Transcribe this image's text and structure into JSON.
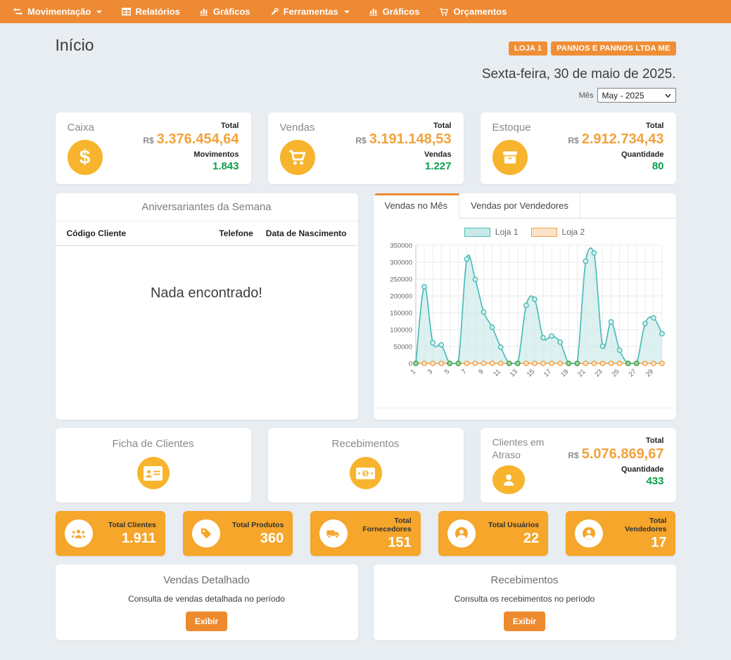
{
  "nav": {
    "items": [
      {
        "label": "Movimentação",
        "icon": "exchange-icon",
        "has_caret": true
      },
      {
        "label": "Relatórios",
        "icon": "table-icon",
        "has_caret": false
      },
      {
        "label": "Gráficos",
        "icon": "bar-chart-icon",
        "has_caret": false
      },
      {
        "label": "Ferramentas",
        "icon": "wrench-icon",
        "has_caret": true
      },
      {
        "label": "Gráficos",
        "icon": "bar-chart-icon",
        "has_caret": false
      },
      {
        "label": "Orçamentos",
        "icon": "cart-icon",
        "has_caret": false
      }
    ]
  },
  "header": {
    "title": "Início",
    "badges": [
      "LOJA 1",
      "PANNOS E PANNOS LTDA ME"
    ],
    "date": "Sexta-feira, 30 de maio de 2025.",
    "month_label": "Mês",
    "month_value": "May - 2025"
  },
  "summary_cards": [
    {
      "title": "Caixa",
      "icon": "dollar-icon",
      "total_label": "Total",
      "currency": "R$",
      "total_value": "3.376.454,64",
      "count_label": "Movimentos",
      "count_value": "1.843"
    },
    {
      "title": "Vendas",
      "icon": "cart-icon",
      "total_label": "Total",
      "currency": "R$",
      "total_value": "3.191.148,53",
      "count_label": "Vendas",
      "count_value": "1.227"
    },
    {
      "title": "Estoque",
      "icon": "box-icon",
      "total_label": "Total",
      "currency": "R$",
      "total_value": "2.912.734,43",
      "count_label": "Quantidade",
      "count_value": "80"
    }
  ],
  "birthdays_panel": {
    "title": "Aniversariantes da Semana",
    "columns": [
      "Código Cliente",
      "Telefone",
      "Data de Nascimento"
    ],
    "empty_message": "Nada encontrado!"
  },
  "sales_panel": {
    "tabs": [
      {
        "label": "Vendas no Mês",
        "active": true
      },
      {
        "label": "Vendas por Vendedores",
        "active": false
      }
    ]
  },
  "chart_data": {
    "type": "area",
    "x": [
      1,
      2,
      3,
      4,
      5,
      6,
      7,
      8,
      9,
      10,
      11,
      12,
      13,
      14,
      15,
      16,
      17,
      18,
      19,
      20,
      21,
      22,
      23,
      24,
      25,
      26,
      27,
      28,
      29,
      30
    ],
    "series": [
      {
        "name": "Loja 1",
        "color": "#4cbcb9",
        "fill": "#c9e9e8",
        "marker_fill": "#d8efee",
        "values": [
          0,
          227000,
          61000,
          55000,
          0,
          0,
          309000,
          249000,
          152000,
          107000,
          48000,
          0,
          0,
          172000,
          190000,
          76000,
          81000,
          63000,
          0,
          0,
          303000,
          327000,
          51000,
          123000,
          39000,
          0,
          0,
          118000,
          135000,
          88000
        ]
      },
      {
        "name": "Loja 2",
        "color": "#f0a04b",
        "fill": "#fbe3c9",
        "marker_fill": "#fce8d0",
        "values": [
          0,
          0,
          0,
          0,
          0,
          0,
          0,
          0,
          0,
          0,
          0,
          0,
          0,
          0,
          0,
          0,
          0,
          0,
          0,
          0,
          0,
          0,
          0,
          0,
          0,
          0,
          0,
          0,
          0,
          0
        ]
      }
    ],
    "ylim": [
      0,
      350000
    ],
    "ytick_step": 50000,
    "xtick_labels": [
      1,
      3,
      5,
      7,
      9,
      11,
      13,
      15,
      17,
      19,
      21,
      23,
      25,
      27,
      29
    ],
    "grid": true,
    "legend_position": "top",
    "zero_marker_color": "#43a047",
    "zero_marker_fill": "#9fd4a5"
  },
  "feature_cards": [
    {
      "title": "Ficha de Clientes",
      "icon": "id-card-icon"
    },
    {
      "title": "Recebimentos",
      "icon": "money-bill-icon"
    }
  ],
  "overdue_card": {
    "title": "Clientes em Atraso",
    "icon": "user-icon",
    "total_label": "Total",
    "currency": "R$",
    "total_value": "5.076.869,67",
    "count_label": "Quantidade",
    "count_value": "433"
  },
  "totals_cards": [
    {
      "label": "Total Clientes",
      "value": "1.911",
      "icon": "users-icon"
    },
    {
      "label": "Total Produtos",
      "value": "360",
      "icon": "tag-icon"
    },
    {
      "label": "Total Fornecedores",
      "value": "151",
      "icon": "truck-icon"
    },
    {
      "label": "Total Usuários",
      "value": "22",
      "icon": "user-circle-icon"
    },
    {
      "label": "Total Vendedores",
      "value": "17",
      "icon": "user-circle-icon"
    }
  ],
  "action_panels": [
    {
      "title": "Vendas Detalhado",
      "description": "Consulta de vendas detalhada no período",
      "button_label": "Exibir"
    },
    {
      "title": "Recebimentos",
      "description": "Consulta os recebimentos no período",
      "button_label": "Exibir"
    }
  ],
  "colors": {
    "nav_bg": "#ee8a33",
    "badge_bg": "#ef8e35",
    "page_bg": "#e8edf2",
    "amount_orange": "#f2a23b",
    "count_green": "#0a9e4b",
    "icon_circle_orange": "#f7b42c",
    "stat_card_orange": "#f5a62b",
    "button_orange": "#ee8a2e"
  }
}
